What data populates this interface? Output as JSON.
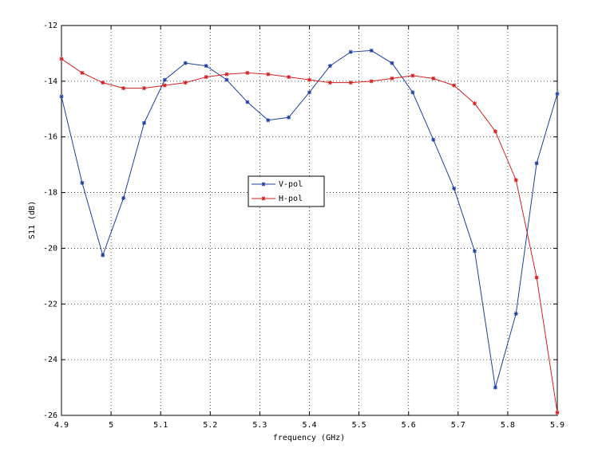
{
  "chart_data": {
    "type": "line",
    "x_label": "frequency (GHz)",
    "y_label": "S11 (dB)",
    "x": [
      4.9,
      4.9417,
      4.9833,
      5.025,
      5.0667,
      5.1083,
      5.15,
      5.1917,
      5.2333,
      5.275,
      5.3167,
      5.3583,
      5.4,
      5.4417,
      5.4833,
      5.525,
      5.5667,
      5.6083,
      5.65,
      5.6917,
      5.7333,
      5.775,
      5.8167,
      5.8583,
      5.9
    ],
    "series": [
      {
        "name": "V-pol",
        "color": "#1f3f9f",
        "values": [
          -14.55,
          -17.65,
          -20.25,
          -18.2,
          -15.5,
          -13.95,
          -13.35,
          -13.45,
          -13.95,
          -14.75,
          -15.4,
          -15.3,
          -14.4,
          -13.45,
          -12.95,
          -12.9,
          -13.35,
          -14.4,
          -16.1,
          -17.85,
          -20.1,
          -25.0,
          -22.35,
          -16.95,
          -14.45
        ]
      },
      {
        "name": "H-pol",
        "color": "#d42020",
        "values": [
          -13.2,
          -13.7,
          -14.05,
          -14.25,
          -14.25,
          -14.15,
          -14.05,
          -13.85,
          -13.75,
          -13.7,
          -13.75,
          -13.85,
          -13.95,
          -14.05,
          -14.05,
          -14.0,
          -13.9,
          -13.8,
          -13.9,
          -14.15,
          -14.8,
          -15.8,
          -17.55,
          -21.05,
          -25.9
        ]
      }
    ],
    "xlim": [
      4.9,
      5.9
    ],
    "xticks": [
      4.9,
      5,
      5.1,
      5.2,
      5.3,
      5.4,
      5.5,
      5.6,
      5.7,
      5.8,
      5.9
    ],
    "ylim": [
      -26,
      -12
    ],
    "yticks": [
      -26,
      -24,
      -22,
      -20,
      -18,
      -16,
      -14,
      -12
    ],
    "grid": true,
    "legend": "center"
  }
}
